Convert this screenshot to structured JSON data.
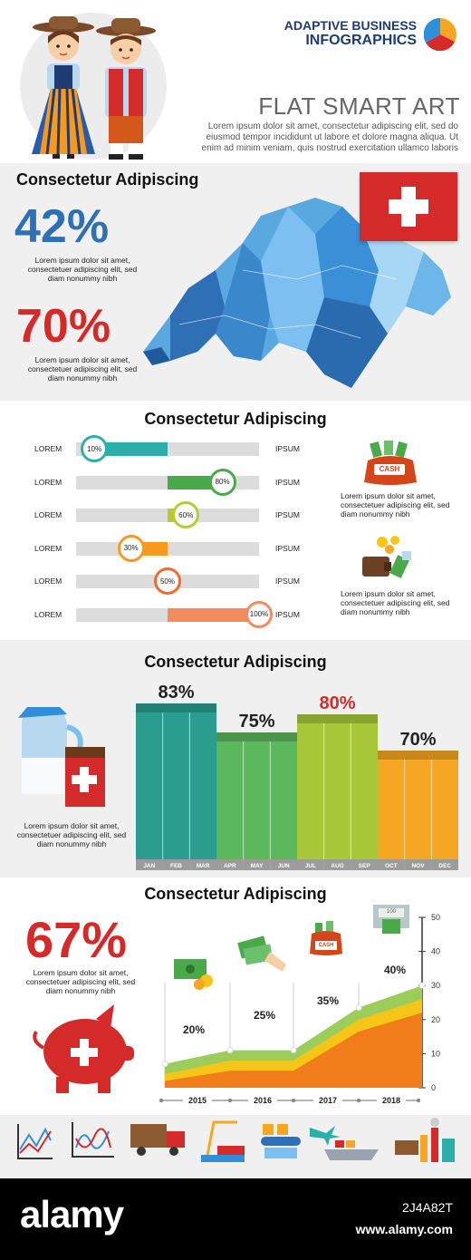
{
  "header": {
    "brand_line1": "ADAPTIVE BUSINESS",
    "brand_line2": "INFOGRAPHICS",
    "title": "FLAT SMART ART",
    "body": "Lorem ipsum dolor sit amet, consectetur adipiscing elit, sed do eiusmod tempor incididunt ut labore et dolore magna aliqua. Ut enim ad minim veniam, quis nostrud exercitation ullamco laboris"
  },
  "map_section": {
    "title": "Consectetur Adipiscing",
    "stat1": "42%",
    "stat1_text": "Lorem ipsum dolor sit amet, consectetuer adipiscing elit, sed diam nonummy nibh",
    "stat2": "70%",
    "stat2_text": "Lorem ipsum dolor sit amet, consectetuer adipiscing elit, sed diam nonummy nibh",
    "colors": {
      "stat1": "#2f6fb5",
      "stat2": "#d42a2a",
      "flag": "#d42a2a"
    }
  },
  "progress_section": {
    "title": "Consectetur Adipiscing",
    "note1": "Lorem ipsum dolor sit amet, consectetuer adipiscing elit, sed diam nonummy nibh",
    "note2": "Lorem ipsum dolor sit amet, consectetuer adipiscing elit, sed diam nonummy nibh",
    "cash_label": "CASH",
    "rows": [
      {
        "left": "LOREM",
        "right": "IPSUM",
        "value": 10,
        "label": "10%",
        "color": "#2ab0a8"
      },
      {
        "left": "LOREM",
        "right": "IPSUM",
        "value": 80,
        "label": "80%",
        "color": "#4aaa4a"
      },
      {
        "left": "LOREM",
        "right": "IPSUM",
        "value": 60,
        "label": "60%",
        "color": "#b8cc30"
      },
      {
        "left": "LOREM",
        "right": "IPSUM",
        "value": 30,
        "label": "30%",
        "color": "#f59a1c"
      },
      {
        "left": "LOREM",
        "right": "IPSUM",
        "value": 50,
        "label": "50%",
        "color": "#f06a30"
      },
      {
        "left": "LOREM",
        "right": "IPSUM",
        "value": 100,
        "label": "100%",
        "color": "#f58a60"
      }
    ]
  },
  "bar_section": {
    "title": "Consectetur Adipiscing",
    "text": "Lorem ipsum dolor sit amet, consectetuer adipiscing elit, sed diam nonummy nibh"
  },
  "area_section": {
    "title": "Consectetur Adipiscing",
    "stat": "67%",
    "text": "Lorem ipsum dolor sit amet, consectetuer adipiscing elit, sed diam nonummy nibh",
    "cash_label": "CASH",
    "atm_label": "100"
  },
  "footer": {
    "brand": "alamy",
    "image_id": "2J4A82T",
    "url": "www.alamy.com"
  },
  "chart_data": [
    {
      "type": "bar",
      "categories": [
        "JAN",
        "FEB",
        "MAR",
        "APR",
        "MAY",
        "JUN",
        "JUL",
        "AUG",
        "SEP",
        "OCT",
        "NOV",
        "DEC"
      ],
      "groups": [
        {
          "months": [
            "JAN",
            "FEB",
            "MAR"
          ],
          "value": 83,
          "label": "83%",
          "color": "#2a9d8f"
        },
        {
          "months": [
            "APR",
            "MAY",
            "JUN"
          ],
          "value": 75,
          "label": "75%",
          "color": "#5cb85c"
        },
        {
          "months": [
            "JUL",
            "AUG",
            "SEP"
          ],
          "value": 80,
          "label": "80%",
          "color": "#a8c83a",
          "label_color": "#d42a2a"
        },
        {
          "months": [
            "OCT",
            "NOV",
            "DEC"
          ],
          "value": 70,
          "label": "70%",
          "color": "#f5a623"
        }
      ],
      "ylim": [
        0,
        100
      ]
    },
    {
      "type": "area",
      "x": [
        "2015",
        "2016",
        "2017",
        "2018"
      ],
      "annotations": [
        "20%",
        "25%",
        "35%",
        "40%"
      ],
      "yticks": [
        0,
        10,
        20,
        30,
        40,
        50
      ],
      "ylim": [
        0,
        50
      ],
      "series": [
        {
          "values": [
            2,
            5,
            5,
            22
          ],
          "color": "#f07c1a"
        },
        {
          "values": [
            4,
            8,
            8,
            26
          ],
          "color": "#f5c518"
        },
        {
          "values": [
            7,
            11,
            11,
            30
          ],
          "color": "#9ccc5a"
        }
      ]
    }
  ]
}
